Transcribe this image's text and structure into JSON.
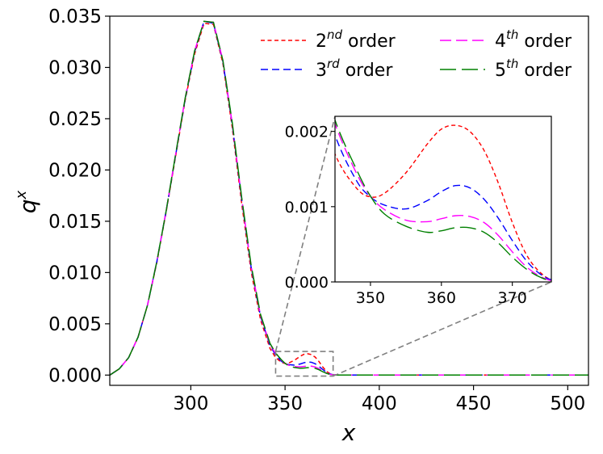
{
  "chart_data": {
    "type": "line",
    "xlabel": "x",
    "ylabel_base": "q",
    "ylabel_sup": "x",
    "xlim": [
      257,
      511
    ],
    "ylim": [
      -0.001,
      0.035
    ],
    "xticks": [
      "300",
      "350",
      "400",
      "450",
      "500"
    ],
    "yticks": [
      "0.000",
      "0.005",
      "0.010",
      "0.015",
      "0.020",
      "0.025",
      "0.030",
      "0.035"
    ],
    "grid": false,
    "legend_position": "top-right",
    "series": [
      {
        "name_base": "2",
        "name_sup": "nd",
        "name_rest": " order",
        "color": "#ff0000",
        "dash": "short",
        "x": [
          257,
          262,
          267,
          272,
          277,
          282,
          287,
          292,
          297,
          302,
          307,
          312,
          317,
          322,
          327,
          332,
          337,
          342,
          345,
          348,
          350,
          352,
          355,
          358,
          360,
          362,
          364,
          366,
          368,
          370,
          372,
          374,
          376,
          380,
          400,
          450,
          511
        ],
        "y": [
          0,
          0.0006,
          0.0017,
          0.0037,
          0.0068,
          0.011,
          0.016,
          0.0214,
          0.0268,
          0.0313,
          0.0343,
          0.0342,
          0.0304,
          0.0241,
          0.0167,
          0.0101,
          0.0054,
          0.0026,
          0.0017,
          0.00125,
          0.00113,
          0.00118,
          0.00145,
          0.00183,
          0.00203,
          0.00208,
          0.002,
          0.00175,
          0.00132,
          0.00079,
          0.00036,
          0.00012,
          2e-05,
          0,
          0,
          0,
          0
        ]
      },
      {
        "name_base": "3",
        "name_sup": "rd",
        "name_rest": " order",
        "color": "#0000ff",
        "dash": "medium",
        "x": [
          257,
          262,
          267,
          272,
          277,
          282,
          287,
          292,
          297,
          302,
          307,
          312,
          317,
          322,
          327,
          332,
          337,
          342,
          345,
          348,
          350,
          352,
          355,
          358,
          360,
          362,
          364,
          366,
          368,
          370,
          372,
          374,
          376,
          380,
          400,
          450,
          511
        ],
        "y": [
          0,
          0.0006,
          0.0017,
          0.0037,
          0.0068,
          0.0111,
          0.0161,
          0.0215,
          0.0269,
          0.0315,
          0.0345,
          0.0343,
          0.0306,
          0.0244,
          0.0171,
          0.0105,
          0.0057,
          0.0029,
          0.00195,
          0.00135,
          0.00113,
          0.00102,
          0.00097,
          0.00108,
          0.0012,
          0.00128,
          0.00125,
          0.0011,
          0.00085,
          0.00055,
          0.00028,
          0.0001,
          2e-05,
          0,
          0,
          0,
          0
        ]
      },
      {
        "name_base": "4",
        "name_sup": "th",
        "name_rest": " order",
        "color": "#ff00ff",
        "dash": "long",
        "x": [
          257,
          262,
          267,
          272,
          277,
          282,
          287,
          292,
          297,
          302,
          307,
          312,
          317,
          322,
          327,
          332,
          337,
          342,
          345,
          348,
          350,
          352,
          355,
          358,
          360,
          362,
          364,
          366,
          368,
          370,
          372,
          374,
          376,
          380,
          400,
          450,
          511
        ],
        "y": [
          0,
          0.0006,
          0.0017,
          0.0037,
          0.0068,
          0.0111,
          0.0161,
          0.0216,
          0.027,
          0.0316,
          0.0345,
          0.0344,
          0.0307,
          0.0245,
          0.0172,
          0.0106,
          0.0058,
          0.003,
          0.0021,
          0.00145,
          0.00114,
          0.00096,
          0.00082,
          0.0008,
          0.00084,
          0.00088,
          0.00087,
          0.00079,
          0.00062,
          0.0004,
          0.0002,
          7e-05,
          1e-05,
          0,
          0,
          0,
          0
        ]
      },
      {
        "name_base": "5",
        "name_sup": "th",
        "name_rest": " order",
        "color": "#008000",
        "dash": "xlong",
        "x": [
          257,
          262,
          267,
          272,
          277,
          282,
          287,
          292,
          297,
          302,
          307,
          312,
          317,
          322,
          327,
          332,
          337,
          342,
          345,
          348,
          350,
          352,
          355,
          358,
          360,
          362,
          364,
          366,
          368,
          370,
          372,
          374,
          376,
          380,
          400,
          450,
          511
        ],
        "y": [
          0,
          0.0006,
          0.0017,
          0.0037,
          0.0068,
          0.0111,
          0.0161,
          0.0216,
          0.027,
          0.0316,
          0.0345,
          0.0344,
          0.0307,
          0.0246,
          0.0173,
          0.0107,
          0.0059,
          0.0031,
          0.00215,
          0.0015,
          0.00114,
          0.0009,
          0.00074,
          0.00066,
          0.00068,
          0.00072,
          0.00072,
          0.00066,
          0.00052,
          0.00033,
          0.00017,
          6e-05,
          1e-05,
          0,
          0,
          0,
          0
        ]
      }
    ],
    "inset": {
      "xlim": [
        345,
        375.5
      ],
      "ylim": [
        0,
        0.0022
      ],
      "xticks": [
        "350",
        "360",
        "370"
      ],
      "yticks": [
        "0.000",
        "0.001",
        "0.002"
      ]
    },
    "zoom_box": {
      "xlim": [
        345,
        375.5
      ],
      "ylim": [
        -0.0001,
        0.0023
      ]
    }
  }
}
